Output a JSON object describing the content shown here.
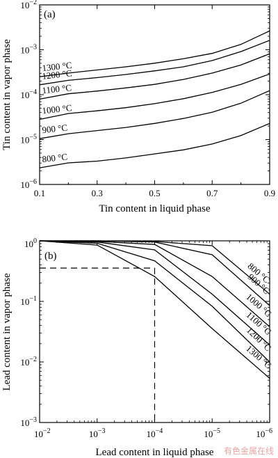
{
  "watermark": "有色金属在线",
  "chart_data": [
    {
      "type": "line",
      "panel_label": "(a)",
      "xlabel": "Tin content in liquid phase",
      "ylabel": "Tin content in vapor phase",
      "xlim": [
        0.1,
        0.9
      ],
      "ylim_log10": [
        -6,
        -2
      ],
      "yscale": "log",
      "x_ticks": [
        {
          "value": 0.1,
          "label": "0.1"
        },
        {
          "value": 0.3,
          "label": "0.3"
        },
        {
          "value": 0.5,
          "label": "0.5"
        },
        {
          "value": 0.7,
          "label": "0.7"
        },
        {
          "value": 0.9,
          "label": "0.9"
        }
      ],
      "y_ticks": [
        {
          "exp": -6,
          "base": "10",
          "sup": "−6"
        },
        {
          "exp": -5,
          "base": "10",
          "sup": "−5"
        },
        {
          "exp": -4,
          "base": "10",
          "sup": "−4"
        },
        {
          "exp": -3,
          "base": "10",
          "sup": "−3"
        },
        {
          "exp": -2,
          "base": "10",
          "sup": "−2"
        }
      ],
      "series": [
        {
          "name": "1300 °C",
          "x": [
            0.1,
            0.2,
            0.3,
            0.4,
            0.5,
            0.6,
            0.7,
            0.8,
            0.9
          ],
          "log10_y": [
            -3.6,
            -3.52,
            -3.45,
            -3.38,
            -3.3,
            -3.2,
            -3.08,
            -2.88,
            -2.58
          ]
        },
        {
          "name": "1200 °C",
          "x": [
            0.1,
            0.2,
            0.3,
            0.4,
            0.5,
            0.6,
            0.7,
            0.8,
            0.9
          ],
          "log10_y": [
            -3.78,
            -3.68,
            -3.62,
            -3.55,
            -3.47,
            -3.38,
            -3.24,
            -3.04,
            -2.79
          ]
        },
        {
          "name": "1100 °C",
          "x": [
            0.1,
            0.2,
            0.3,
            0.4,
            0.5,
            0.6,
            0.7,
            0.8,
            0.9
          ],
          "log10_y": [
            -4.1,
            -3.98,
            -3.92,
            -3.85,
            -3.77,
            -3.66,
            -3.52,
            -3.34,
            -3.09
          ]
        },
        {
          "name": "1000 °C",
          "x": [
            0.1,
            0.2,
            0.3,
            0.4,
            0.5,
            0.6,
            0.7,
            0.8,
            0.9
          ],
          "log10_y": [
            -4.55,
            -4.42,
            -4.36,
            -4.29,
            -4.2,
            -4.09,
            -3.95,
            -3.77,
            -3.54
          ]
        },
        {
          "name": "900 °C",
          "x": [
            0.1,
            0.2,
            0.3,
            0.4,
            0.5,
            0.6,
            0.7,
            0.8,
            0.9
          ],
          "log10_y": [
            -4.98,
            -4.87,
            -4.8,
            -4.73,
            -4.64,
            -4.53,
            -4.39,
            -4.19,
            -3.91
          ]
        },
        {
          "name": "800 °C",
          "x": [
            0.1,
            0.2,
            0.3,
            0.4,
            0.5,
            0.6,
            0.7,
            0.8,
            0.9
          ],
          "log10_y": [
            -5.63,
            -5.52,
            -5.48,
            -5.41,
            -5.32,
            -5.23,
            -5.1,
            -4.91,
            -4.64
          ]
        }
      ]
    },
    {
      "type": "line",
      "panel_label": "(b)",
      "xlabel": "Lead content in liquid phase",
      "ylabel": "Lead content in vapor phase",
      "xscale": "log (decreasing)",
      "yscale": "log",
      "xlim_log10": [
        -2,
        -6
      ],
      "ylim_log10": [
        -3,
        0
      ],
      "x_ticks": [
        {
          "exp": -2,
          "base": "10",
          "sup": "−2"
        },
        {
          "exp": -3,
          "base": "10",
          "sup": "−3"
        },
        {
          "exp": -4,
          "base": "10",
          "sup": "−4"
        },
        {
          "exp": -5,
          "base": "10",
          "sup": "−5"
        },
        {
          "exp": -6,
          "base": "10",
          "sup": "−6"
        }
      ],
      "y_ticks": [
        {
          "exp": -3,
          "base": "10",
          "sup": "−3"
        },
        {
          "exp": -2,
          "base": "10",
          "sup": "−2"
        },
        {
          "exp": -1,
          "base": "10",
          "sup": "−1"
        },
        {
          "exp": 0,
          "base": "10",
          "sup": "0"
        }
      ],
      "series": [
        {
          "name": "800 °C",
          "log10_x": [
            -2,
            -3,
            -4,
            -5,
            -6
          ],
          "log10_y": [
            0,
            0,
            -0.01,
            -0.08,
            -0.88
          ]
        },
        {
          "name": "900 °C",
          "log10_x": [
            -2,
            -3,
            -4,
            -5,
            -6
          ],
          "log10_y": [
            0,
            0,
            -0.02,
            -0.23,
            -1.07
          ]
        },
        {
          "name": "1000 °C",
          "log10_x": [
            -2,
            -3,
            -4,
            -5,
            -6
          ],
          "log10_y": [
            0,
            -0.01,
            -0.06,
            -0.59,
            -1.42
          ]
        },
        {
          "name": "1100 °C",
          "log10_x": [
            -2,
            -3,
            -4,
            -5,
            -6
          ],
          "log10_y": [
            0,
            -0.02,
            -0.15,
            -0.88,
            -1.72
          ]
        },
        {
          "name": "1200 °C",
          "log10_x": [
            -2,
            -3,
            -4,
            -5,
            -6
          ],
          "log10_y": [
            0,
            -0.04,
            -0.33,
            -1.08,
            -2.0
          ]
        },
        {
          "name": "1300 °C",
          "log10_x": [
            -2,
            -3,
            -4,
            -5,
            -6
          ],
          "log10_y": [
            0,
            -0.07,
            -0.59,
            -1.45,
            -2.27
          ]
        }
      ],
      "reference_lines": {
        "style": "dashed",
        "log10_x": -4,
        "log10_y": -0.45
      }
    }
  ]
}
